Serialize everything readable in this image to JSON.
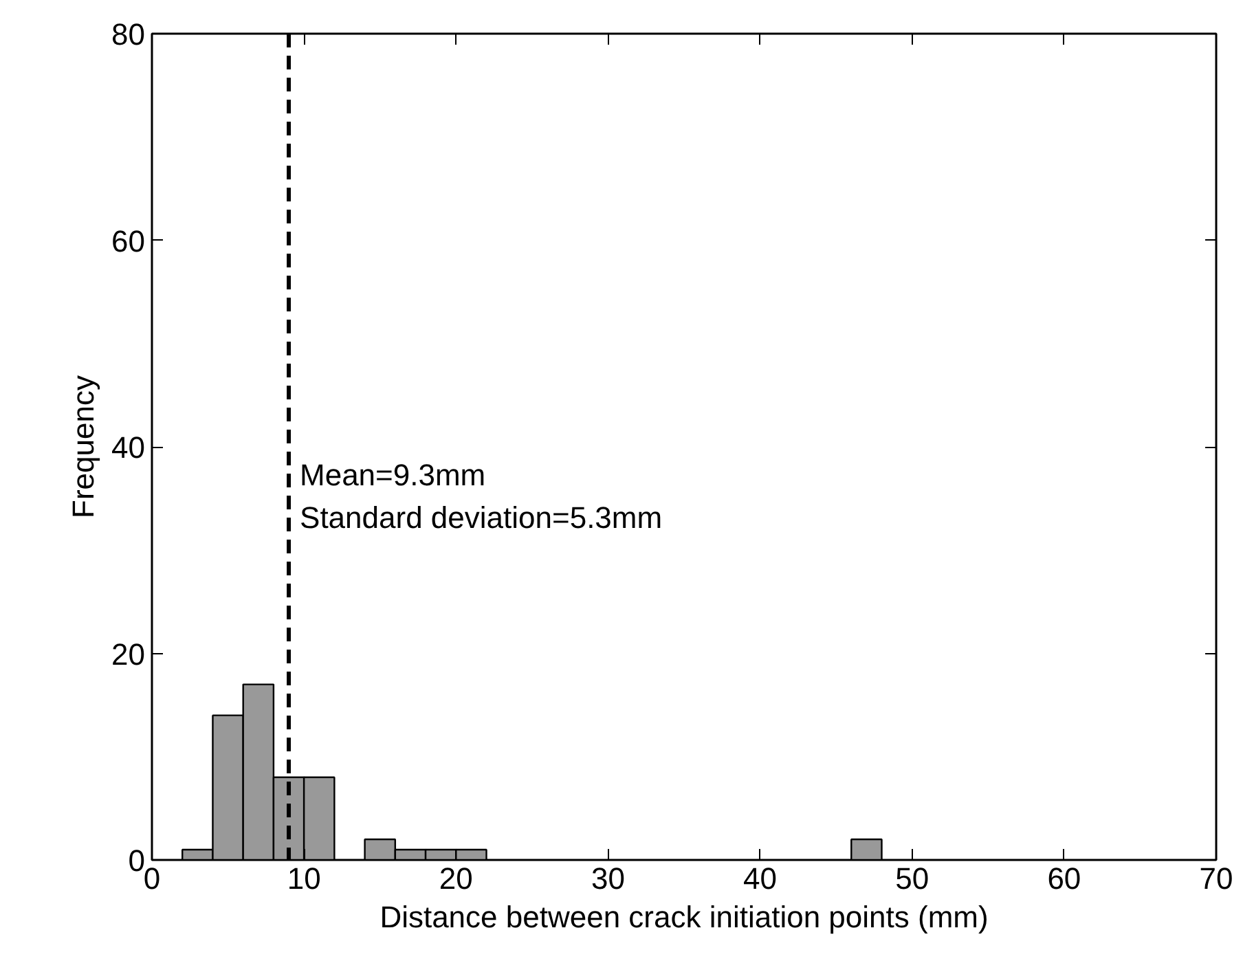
{
  "chart_data": {
    "type": "histogram",
    "xlabel": "Distance between crack initiation points (mm)",
    "ylabel": "Frequency",
    "bins": [
      2,
      4,
      6,
      8,
      10,
      12,
      14,
      16,
      18,
      20,
      22,
      24,
      26,
      28,
      30,
      32,
      34,
      36,
      38,
      40,
      42,
      44,
      46,
      48
    ],
    "values": [
      1,
      14,
      17,
      8,
      8,
      0,
      2,
      1,
      1,
      1,
      0,
      0,
      0,
      0,
      0,
      0,
      0,
      0,
      0,
      0,
      0,
      0,
      2
    ],
    "color": "#999999",
    "xlim": [
      0,
      70
    ],
    "xticks": [
      0,
      10,
      20,
      30,
      40,
      50,
      60,
      70
    ],
    "ylim": [
      0,
      80
    ],
    "yticks": [
      0,
      20,
      40,
      60,
      80
    ],
    "ref_lines": [
      {
        "axis": "x",
        "value": 9,
        "line_style": "dashed",
        "color": "#000000"
      }
    ],
    "annotations": [
      "Mean=9.3mm",
      "Standard deviation=5.3mm"
    ],
    "grid": false
  }
}
